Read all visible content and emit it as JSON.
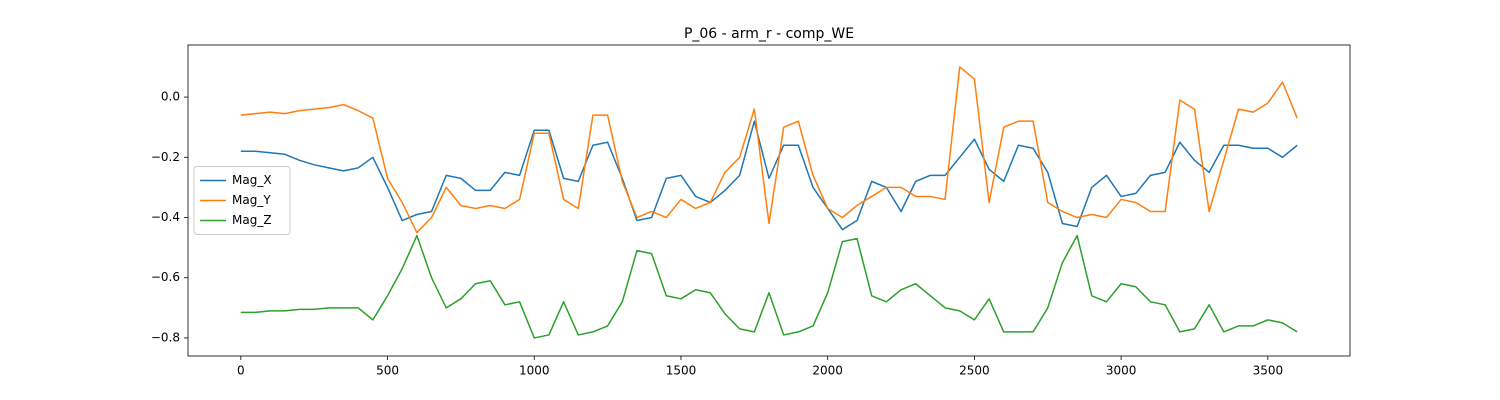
{
  "chart_data": {
    "type": "line",
    "title": "P_06 - arm_r - comp_WE",
    "x": [
      0,
      50,
      100,
      150,
      200,
      250,
      300,
      350,
      400,
      450,
      500,
      550,
      600,
      650,
      700,
      750,
      800,
      850,
      900,
      950,
      1000,
      1050,
      1100,
      1150,
      1200,
      1250,
      1300,
      1350,
      1400,
      1450,
      1500,
      1550,
      1600,
      1650,
      1700,
      1750,
      1800,
      1850,
      1900,
      1950,
      2000,
      2050,
      2100,
      2150,
      2200,
      2250,
      2300,
      2350,
      2400,
      2450,
      2500,
      2550,
      2600,
      2650,
      2700,
      2750,
      2800,
      2850,
      2900,
      2950,
      3000,
      3050,
      3100,
      3150,
      3200,
      3250,
      3300,
      3350,
      3400,
      3450,
      3500,
      3550,
      3600
    ],
    "series": [
      {
        "name": "Mag_X",
        "color": "#1f77b4",
        "values": [
          -0.18,
          -0.18,
          -0.185,
          -0.19,
          -0.21,
          -0.225,
          -0.235,
          -0.245,
          -0.235,
          -0.2,
          -0.3,
          -0.41,
          -0.39,
          -0.38,
          -0.26,
          -0.27,
          -0.31,
          -0.31,
          -0.25,
          -0.26,
          -0.11,
          -0.11,
          -0.27,
          -0.28,
          -0.16,
          -0.15,
          -0.27,
          -0.41,
          -0.4,
          -0.27,
          -0.26,
          -0.33,
          -0.35,
          -0.31,
          -0.26,
          -0.08,
          -0.27,
          -0.16,
          -0.16,
          -0.3,
          -0.37,
          -0.44,
          -0.41,
          -0.28,
          -0.3,
          -0.38,
          -0.28,
          -0.26,
          -0.26,
          -0.2,
          -0.14,
          -0.24,
          -0.28,
          -0.16,
          -0.17,
          -0.25,
          -0.42,
          -0.43,
          -0.3,
          -0.26,
          -0.33,
          -0.32,
          -0.26,
          -0.25,
          -0.15,
          -0.21,
          -0.25,
          -0.16,
          -0.16,
          -0.17,
          -0.17,
          -0.2,
          -0.16
        ]
      },
      {
        "name": "Mag_Y",
        "color": "#ff7f0e",
        "values": [
          -0.06,
          -0.055,
          -0.05,
          -0.055,
          -0.045,
          -0.04,
          -0.035,
          -0.025,
          -0.045,
          -0.07,
          -0.27,
          -0.35,
          -0.45,
          -0.4,
          -0.3,
          -0.36,
          -0.37,
          -0.36,
          -0.37,
          -0.34,
          -0.12,
          -0.12,
          -0.34,
          -0.37,
          -0.06,
          -0.06,
          -0.28,
          -0.4,
          -0.38,
          -0.4,
          -0.34,
          -0.37,
          -0.35,
          -0.25,
          -0.2,
          -0.04,
          -0.42,
          -0.1,
          -0.08,
          -0.26,
          -0.37,
          -0.4,
          -0.36,
          -0.33,
          -0.3,
          -0.3,
          -0.33,
          -0.33,
          -0.34,
          0.1,
          0.06,
          -0.35,
          -0.1,
          -0.08,
          -0.08,
          -0.35,
          -0.38,
          -0.4,
          -0.39,
          -0.4,
          -0.34,
          -0.35,
          -0.38,
          -0.38,
          -0.01,
          -0.04,
          -0.38,
          -0.21,
          -0.04,
          -0.05,
          -0.02,
          0.05,
          -0.07
        ]
      },
      {
        "name": "Mag_Z",
        "color": "#2ca02c",
        "values": [
          -0.715,
          -0.715,
          -0.71,
          -0.71,
          -0.705,
          -0.705,
          -0.7,
          -0.7,
          -0.7,
          -0.74,
          -0.66,
          -0.57,
          -0.46,
          -0.6,
          -0.7,
          -0.67,
          -0.62,
          -0.61,
          -0.69,
          -0.68,
          -0.8,
          -0.79,
          -0.68,
          -0.79,
          -0.78,
          -0.76,
          -0.68,
          -0.51,
          -0.52,
          -0.66,
          -0.67,
          -0.64,
          -0.65,
          -0.72,
          -0.77,
          -0.78,
          -0.65,
          -0.79,
          -0.78,
          -0.76,
          -0.65,
          -0.48,
          -0.47,
          -0.66,
          -0.68,
          -0.64,
          -0.62,
          -0.66,
          -0.7,
          -0.71,
          -0.74,
          -0.67,
          -0.78,
          -0.78,
          -0.78,
          -0.7,
          -0.55,
          -0.46,
          -0.66,
          -0.68,
          -0.62,
          -0.63,
          -0.68,
          -0.69,
          -0.78,
          -0.77,
          -0.69,
          -0.78,
          -0.76,
          -0.76,
          -0.74,
          -0.75,
          -0.78
        ]
      }
    ],
    "xlim": [
      -180,
      3780
    ],
    "xticks": [
      0,
      500,
      1000,
      1500,
      2000,
      2500,
      3000,
      3500
    ],
    "ylim": [
      -0.86,
      0.173
    ],
    "yticks": [
      {
        "value": -0.8,
        "label": "−0.8"
      },
      {
        "value": -0.6,
        "label": "−0.6"
      },
      {
        "value": -0.4,
        "label": "−0.4"
      },
      {
        "value": -0.2,
        "label": "−0.2"
      },
      {
        "value": 0,
        "label": "0.0"
      }
    ],
    "legend": "center left",
    "grid": false
  }
}
